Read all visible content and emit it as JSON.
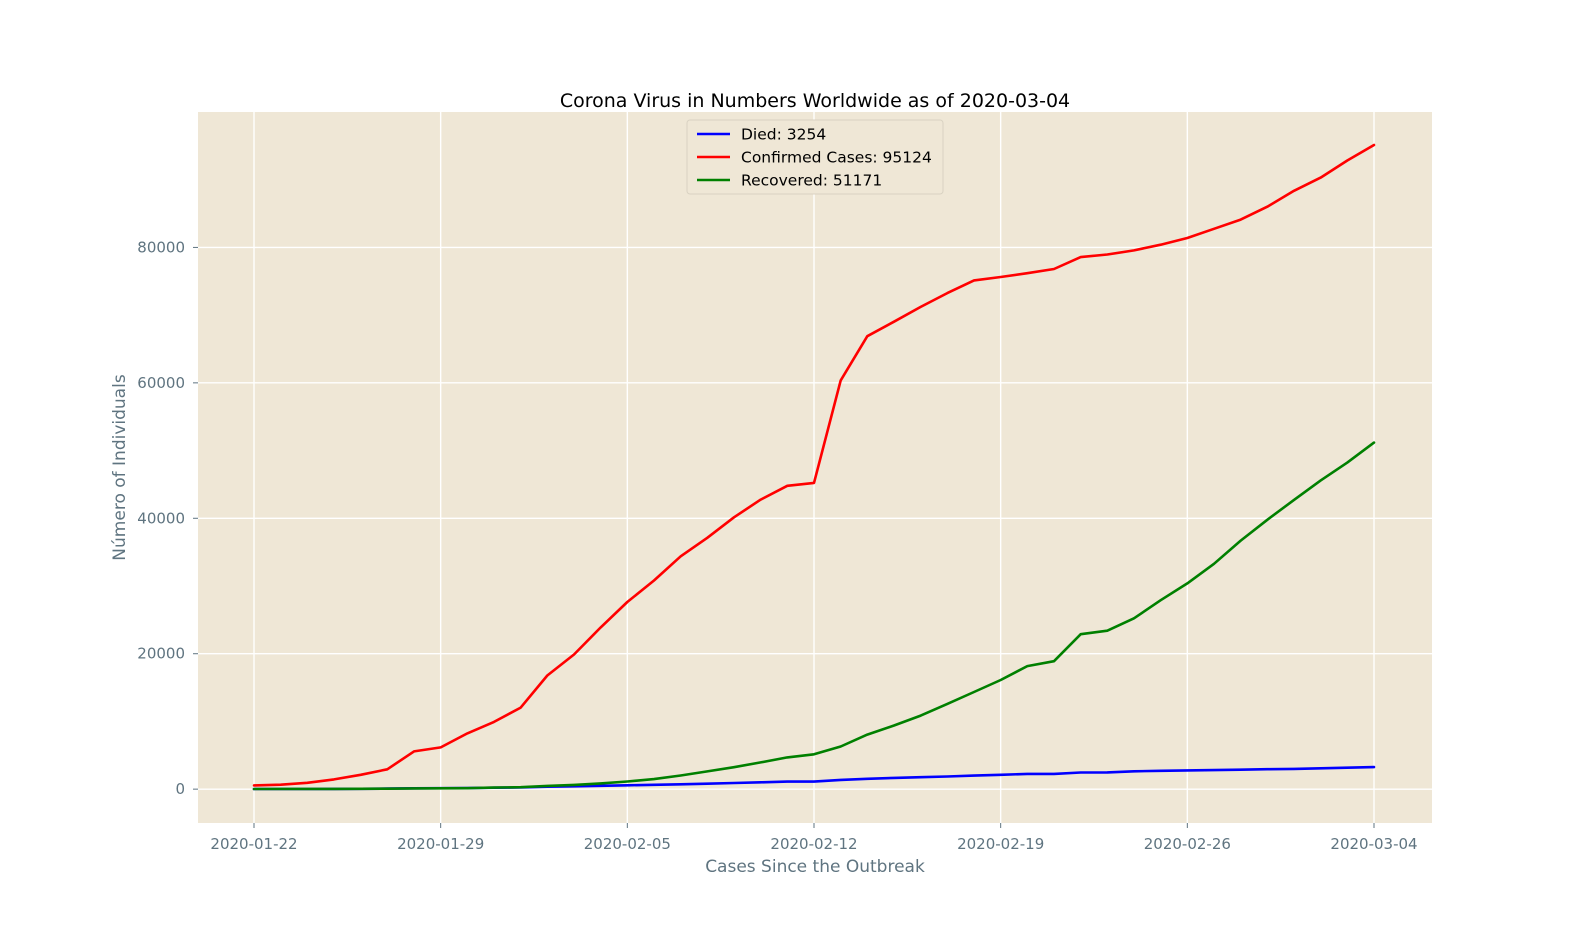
{
  "chart_data": {
    "type": "line",
    "title": "Corona Virus in Numbers Worldwide as of 2020-03-04",
    "xlabel": "Cases Since the Outbreak",
    "ylabel": "Número of Individuals",
    "x_ticks": [
      "2020-01-22",
      "2020-01-29",
      "2020-02-05",
      "2020-02-12",
      "2020-02-19",
      "2020-02-26",
      "2020-03-04"
    ],
    "y_ticks": [
      0,
      20000,
      40000,
      60000,
      80000
    ],
    "ylim": [
      -5000,
      100000
    ],
    "grid": true,
    "legend_position": "top-center",
    "x": [
      "2020-01-22",
      "2020-01-23",
      "2020-01-24",
      "2020-01-25",
      "2020-01-26",
      "2020-01-27",
      "2020-01-28",
      "2020-01-29",
      "2020-01-30",
      "2020-01-31",
      "2020-02-01",
      "2020-02-02",
      "2020-02-03",
      "2020-02-04",
      "2020-02-05",
      "2020-02-06",
      "2020-02-07",
      "2020-02-08",
      "2020-02-09",
      "2020-02-10",
      "2020-02-11",
      "2020-02-12",
      "2020-02-13",
      "2020-02-14",
      "2020-02-15",
      "2020-02-16",
      "2020-02-17",
      "2020-02-18",
      "2020-02-19",
      "2020-02-20",
      "2020-02-21",
      "2020-02-22",
      "2020-02-23",
      "2020-02-24",
      "2020-02-25",
      "2020-02-26",
      "2020-02-27",
      "2020-02-28",
      "2020-02-29",
      "2020-03-01",
      "2020-03-02",
      "2020-03-03",
      "2020-03-04"
    ],
    "series": [
      {
        "name": "Died",
        "legend": "Died: 3254",
        "color": "#0000ff",
        "values": [
          17,
          18,
          26,
          42,
          56,
          82,
          131,
          133,
          171,
          213,
          259,
          362,
          426,
          492,
          564,
          634,
          719,
          806,
          906,
          1013,
          1113,
          1118,
          1371,
          1523,
          1666,
          1770,
          1868,
          2007,
          2122,
          2247,
          2251,
          2458,
          2469,
          2629,
          2708,
          2770,
          2814,
          2872,
          2941,
          2996,
          3085,
          3160,
          3254
        ]
      },
      {
        "name": "Confirmed Cases",
        "legend": "Confirmed Cases: 95124",
        "color": "#ff0000",
        "values": [
          555,
          654,
          941,
          1434,
          2118,
          2927,
          5578,
          6166,
          8234,
          9927,
          12038,
          16787,
          19881,
          23892,
          27635,
          30817,
          34391,
          37120,
          40150,
          42762,
          44802,
          45221,
          60368,
          66885,
          69030,
          71224,
          73258,
          75136,
          75639,
          76197,
          76819,
          78572,
          78958,
          79561,
          80406,
          81388,
          82746,
          84112,
          86011,
          88369,
          90306,
          92840,
          95124
        ]
      },
      {
        "name": "Recovered",
        "legend": "Recovered: 51171",
        "color": "#008000",
        "values": [
          28,
          30,
          36,
          39,
          52,
          61,
          107,
          126,
          143,
          222,
          284,
          472,
          623,
          852,
          1124,
          1487,
          2011,
          2616,
          3244,
          3946,
          4683,
          5150,
          6295,
          8058,
          9395,
          10865,
          12583,
          14352,
          16121,
          18177,
          18890,
          22886,
          23394,
          25227,
          27905,
          30384,
          33277,
          36711,
          39782,
          42716,
          45602,
          48228,
          51171
        ]
      }
    ]
  }
}
